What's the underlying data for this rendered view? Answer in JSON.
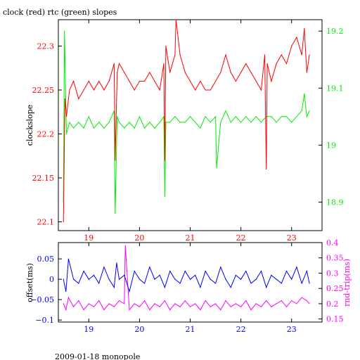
{
  "figure": {
    "title": "clock (red) rtc (green) slopes",
    "footer": "2009-01-18 monopole"
  },
  "colors": {
    "red": "#ff0000",
    "green": "#00ee00",
    "blue": "#0000ff",
    "magenta": "#ff00ff",
    "axis": "#000000"
  },
  "chart_data": [
    {
      "type": "line",
      "title": "clock (red) rtc (green) slopes",
      "ylabel": "clockslope",
      "ylabel_right": "",
      "xlim": [
        18.4,
        23.6
      ],
      "ylim": [
        22.09,
        22.33
      ],
      "ylim_right": [
        18.85,
        19.22
      ],
      "x_ticks": [
        19,
        20,
        21,
        22,
        23
      ],
      "x_tick_labels": [
        "19",
        "20",
        "21",
        "22",
        "23"
      ],
      "y_ticks": [
        22.1,
        22.15,
        22.2,
        22.25,
        22.3
      ],
      "y_tick_labels": [
        "22.1",
        "22.15",
        "22.2",
        "22.25",
        "22.3"
      ],
      "y2_ticks": [
        18.9,
        19.0,
        19.1,
        19.2
      ],
      "y2_tick_labels": [
        "18.9",
        "19",
        "19.1",
        "19.2"
      ],
      "grid": false,
      "series": [
        {
          "name": "clock",
          "axis": "left",
          "color": "red",
          "x": [
            18.5,
            18.53,
            18.56,
            18.62,
            18.7,
            18.8,
            18.9,
            19.0,
            19.1,
            19.2,
            19.3,
            19.4,
            19.5,
            19.52,
            19.56,
            19.6,
            19.7,
            19.8,
            19.9,
            20.0,
            20.1,
            20.2,
            20.3,
            20.4,
            20.48,
            20.5,
            20.52,
            20.6,
            20.7,
            20.72,
            20.8,
            20.9,
            21.0,
            21.1,
            21.2,
            21.3,
            21.4,
            21.5,
            21.6,
            21.7,
            21.8,
            21.9,
            22.0,
            22.1,
            22.2,
            22.3,
            22.4,
            22.47,
            22.5,
            22.52,
            22.6,
            22.7,
            22.8,
            22.9,
            23.0,
            23.1,
            23.2,
            23.25,
            23.3,
            23.35
          ],
          "values": [
            22.1,
            22.24,
            22.22,
            22.25,
            22.26,
            22.24,
            22.25,
            22.26,
            22.25,
            22.26,
            22.25,
            22.26,
            22.28,
            22.17,
            22.27,
            22.28,
            22.27,
            22.26,
            22.25,
            22.26,
            22.26,
            22.27,
            22.26,
            22.25,
            22.28,
            22.17,
            22.3,
            22.27,
            22.29,
            22.33,
            22.29,
            22.27,
            22.26,
            22.25,
            22.26,
            22.25,
            22.25,
            22.26,
            22.27,
            22.29,
            22.27,
            22.26,
            22.27,
            22.28,
            22.27,
            22.26,
            22.25,
            22.29,
            22.16,
            22.28,
            22.26,
            22.28,
            22.29,
            22.28,
            22.3,
            22.31,
            22.29,
            22.32,
            22.27,
            22.29
          ]
        },
        {
          "name": "rtc",
          "axis": "right",
          "color": "green",
          "x": [
            18.5,
            18.52,
            18.56,
            18.62,
            18.7,
            18.8,
            18.9,
            19.0,
            19.1,
            19.2,
            19.3,
            19.4,
            19.5,
            19.52,
            19.56,
            19.6,
            19.7,
            19.8,
            19.9,
            20.0,
            20.1,
            20.2,
            20.3,
            20.4,
            20.48,
            20.5,
            20.52,
            20.6,
            20.7,
            20.8,
            20.9,
            21.0,
            21.1,
            21.2,
            21.3,
            21.4,
            21.5,
            21.52,
            21.6,
            21.7,
            21.8,
            21.9,
            22.0,
            22.1,
            22.2,
            22.3,
            22.4,
            22.5,
            22.6,
            22.7,
            22.8,
            22.9,
            23.0,
            23.1,
            23.2,
            23.25,
            23.3,
            23.35
          ],
          "values": [
            18.9,
            19.2,
            19.02,
            19.04,
            19.03,
            19.04,
            19.03,
            19.05,
            19.03,
            19.04,
            19.03,
            19.04,
            19.06,
            18.88,
            19.05,
            19.04,
            19.03,
            19.04,
            19.03,
            19.05,
            19.03,
            19.04,
            19.03,
            19.04,
            19.05,
            18.91,
            19.04,
            19.04,
            19.05,
            19.04,
            19.04,
            19.05,
            19.04,
            19.03,
            19.05,
            19.04,
            19.05,
            18.96,
            19.04,
            19.06,
            19.04,
            19.05,
            19.04,
            19.05,
            19.04,
            19.05,
            19.04,
            19.05,
            19.05,
            19.04,
            19.05,
            19.05,
            19.04,
            19.05,
            19.06,
            19.09,
            19.05,
            19.06
          ]
        }
      ]
    },
    {
      "type": "line",
      "ylabel": "offset(ms)",
      "ylabel_right": "rnd-trip(ms)",
      "xlim": [
        18.4,
        23.6
      ],
      "ylim": [
        -0.105,
        0.09
      ],
      "ylim_right": [
        0.14,
        0.4
      ],
      "x_ticks": [
        19,
        20,
        21,
        22,
        23
      ],
      "x_tick_labels": [
        "19",
        "20",
        "21",
        "22",
        "23"
      ],
      "y_ticks": [
        -0.1,
        -0.05,
        0,
        0.05
      ],
      "y_tick_labels": [
        "−0.1",
        "−0.05",
        "0",
        "0.05"
      ],
      "y2_ticks": [
        0.15,
        0.2,
        0.25,
        0.3,
        0.35,
        0.4
      ],
      "y2_tick_labels": [
        "0.15",
        "0.2",
        "0.25",
        "0.3",
        "0.35",
        "0.4"
      ],
      "grid": false,
      "series": [
        {
          "name": "offset",
          "axis": "left",
          "color": "blue",
          "x": [
            18.5,
            18.55,
            18.6,
            18.7,
            18.8,
            18.9,
            19.0,
            19.1,
            19.2,
            19.3,
            19.4,
            19.5,
            19.55,
            19.6,
            19.7,
            19.8,
            19.9,
            20.0,
            20.1,
            20.2,
            20.3,
            20.4,
            20.5,
            20.6,
            20.7,
            20.8,
            20.9,
            21.0,
            21.1,
            21.2,
            21.3,
            21.4,
            21.5,
            21.6,
            21.7,
            21.8,
            21.9,
            22.0,
            22.1,
            22.2,
            22.3,
            22.4,
            22.5,
            22.6,
            22.7,
            22.8,
            22.9,
            23.0,
            23.1,
            23.2,
            23.3,
            23.35
          ],
          "values": [
            0.0,
            -0.03,
            0.05,
            0.0,
            -0.01,
            0.02,
            0.0,
            0.01,
            -0.01,
            0.03,
            0.0,
            -0.02,
            0.04,
            0.0,
            0.01,
            -0.03,
            0.02,
            0.0,
            -0.01,
            0.03,
            0.0,
            0.01,
            -0.02,
            0.02,
            0.0,
            -0.01,
            0.02,
            0.0,
            0.01,
            -0.02,
            0.02,
            0.0,
            -0.01,
            0.03,
            0.0,
            -0.02,
            0.01,
            0.0,
            0.02,
            -0.01,
            0.0,
            0.02,
            -0.02,
            0.01,
            0.0,
            -0.01,
            0.02,
            0.0,
            0.03,
            -0.01,
            0.02,
            -0.01
          ]
        },
        {
          "name": "rnd-trip",
          "axis": "right",
          "color": "magenta",
          "x": [
            18.5,
            18.55,
            18.6,
            18.7,
            18.8,
            18.9,
            19.0,
            19.1,
            19.2,
            19.3,
            19.4,
            19.5,
            19.6,
            19.7,
            19.72,
            19.8,
            19.9,
            20.0,
            20.1,
            20.2,
            20.3,
            20.4,
            20.5,
            20.6,
            20.7,
            20.8,
            20.9,
            21.0,
            21.1,
            21.2,
            21.3,
            21.4,
            21.5,
            21.6,
            21.7,
            21.8,
            21.9,
            22.0,
            22.1,
            22.2,
            22.3,
            22.4,
            22.5,
            22.6,
            22.7,
            22.8,
            22.9,
            23.0,
            23.1,
            23.2,
            23.3,
            23.35
          ],
          "values": [
            0.2,
            0.18,
            0.22,
            0.19,
            0.21,
            0.18,
            0.2,
            0.19,
            0.21,
            0.18,
            0.2,
            0.19,
            0.21,
            0.2,
            0.39,
            0.18,
            0.2,
            0.19,
            0.21,
            0.18,
            0.2,
            0.19,
            0.21,
            0.18,
            0.2,
            0.19,
            0.21,
            0.19,
            0.2,
            0.18,
            0.21,
            0.19,
            0.2,
            0.18,
            0.21,
            0.19,
            0.2,
            0.19,
            0.21,
            0.18,
            0.2,
            0.19,
            0.21,
            0.19,
            0.2,
            0.21,
            0.19,
            0.21,
            0.2,
            0.22,
            0.21,
            0.2
          ]
        }
      ]
    }
  ]
}
